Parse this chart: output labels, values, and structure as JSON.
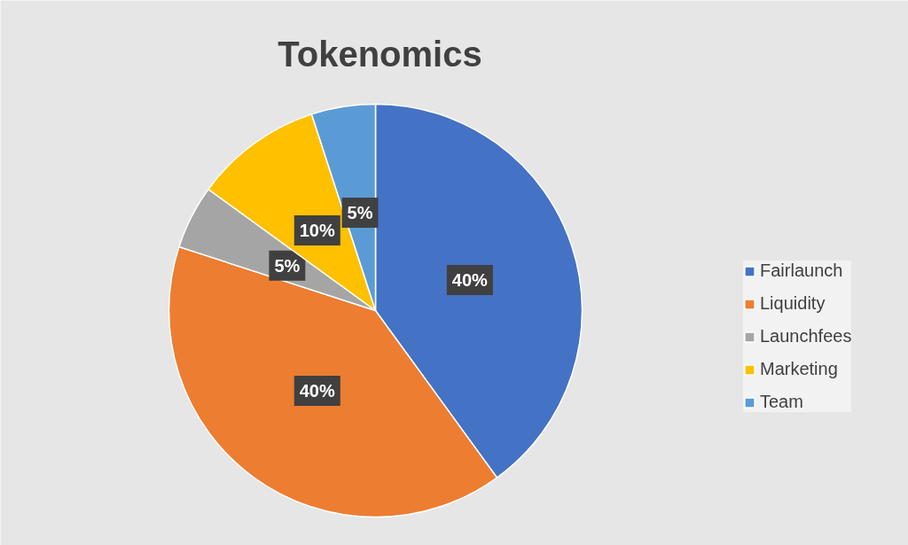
{
  "chart_data": {
    "type": "pie",
    "title": "Tokenomics",
    "categories": [
      "Fairlaunch",
      "Liquidity",
      "Launchfees",
      "Marketing",
      "Team"
    ],
    "values": [
      40,
      40,
      5,
      10,
      5
    ],
    "colors": [
      "#4472c4",
      "#ed7d31",
      "#a5a5a5",
      "#ffc000",
      "#5b9bd5"
    ],
    "value_labels": [
      "40%",
      "40%",
      "5%",
      "10%",
      "5%"
    ],
    "legend": "right"
  }
}
